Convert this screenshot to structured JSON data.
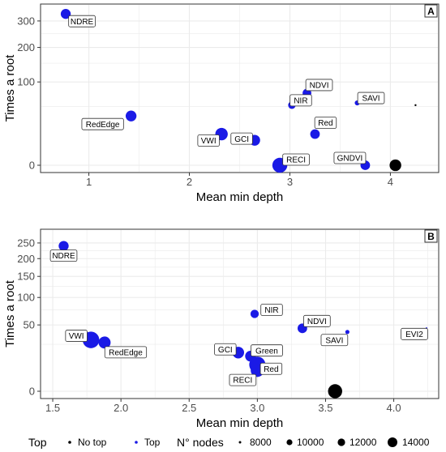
{
  "chart_data": [
    {
      "type": "scatter",
      "panel": "A",
      "xlabel": "Mean min depth",
      "ylabel": "Times a root",
      "xlim": [
        0.6,
        4.4
      ],
      "y_ticks": [
        0,
        100,
        200,
        300
      ],
      "x_ticks": [
        1,
        2,
        3,
        4
      ],
      "y_scale": "sqrt",
      "grid": true,
      "points": [
        {
          "label": "NDRE",
          "x": 0.77,
          "y": 330,
          "top": true,
          "nodes": 9000
        },
        {
          "label": "RedEdge",
          "x": 1.42,
          "y": 35,
          "top": true,
          "nodes": 9200
        },
        {
          "label": "VWI",
          "x": 2.32,
          "y": 14,
          "top": true,
          "nodes": 9600
        },
        {
          "label": "GCI",
          "x": 2.65,
          "y": 9,
          "top": true,
          "nodes": 9200
        },
        {
          "label": "RECI",
          "x": 2.9,
          "y": 0,
          "top": true,
          "nodes": 10200
        },
        {
          "label": "NIR",
          "x": 3.02,
          "y": 52,
          "top": true,
          "nodes": 8400
        },
        {
          "label": "NDVI",
          "x": 3.17,
          "y": 75,
          "top": true,
          "nodes": 8700
        },
        {
          "label": "Red",
          "x": 3.25,
          "y": 14,
          "top": true,
          "nodes": 8900
        },
        {
          "label": "SAVI",
          "x": 3.67,
          "y": 56,
          "top": true,
          "nodes": 7800
        },
        {
          "label": "GNDVI",
          "x": 3.75,
          "y": 0,
          "top": true,
          "nodes": 8900
        },
        {
          "label": "",
          "x": 4.05,
          "y": 0,
          "top": false,
          "nodes": 9400
        },
        {
          "label": "",
          "x": 4.25,
          "y": 52,
          "top": false,
          "nodes": 7000
        }
      ]
    },
    {
      "type": "scatter",
      "panel": "B",
      "xlabel": "Mean min depth",
      "ylabel": "Times a root",
      "xlim": [
        1.47,
        4.27
      ],
      "y_ticks": [
        0,
        50,
        100,
        150,
        200,
        250
      ],
      "x_ticks": [
        1.5,
        2.0,
        2.5,
        3.0,
        3.5,
        4.0
      ],
      "y_scale": "sqrt",
      "grid": true,
      "points": [
        {
          "label": "NDRE",
          "x": 1.58,
          "y": 240,
          "top": true,
          "nodes": 9000
        },
        {
          "label": "VWI",
          "x": 1.78,
          "y": 30,
          "top": true,
          "nodes": 10600
        },
        {
          "label": "RedEdge",
          "x": 1.88,
          "y": 27,
          "top": true,
          "nodes": 9500
        },
        {
          "label": "GCI",
          "x": 2.86,
          "y": 17,
          "top": true,
          "nodes": 9400
        },
        {
          "label": "Green",
          "x": 2.95,
          "y": 14,
          "top": true,
          "nodes": 9200
        },
        {
          "label": "NIR",
          "x": 2.98,
          "y": 68,
          "top": true,
          "nodes": 8600
        },
        {
          "label": "Red",
          "x": 3.0,
          "y": 8,
          "top": true,
          "nodes": 10500
        },
        {
          "label": "RECI",
          "x": 3.0,
          "y": 5,
          "top": true,
          "nodes": 9800
        },
        {
          "label": "NDVI",
          "x": 3.33,
          "y": 45,
          "top": true,
          "nodes": 8900
        },
        {
          "label": "SAVI",
          "x": 3.66,
          "y": 40,
          "top": true,
          "nodes": 7600
        },
        {
          "label": "EVI2",
          "x": 4.24,
          "y": 45,
          "top": true,
          "nodes": 6800
        },
        {
          "label": "",
          "x": 3.57,
          "y": 0,
          "top": false,
          "nodes": 10000
        }
      ]
    }
  ],
  "legend": {
    "top_title": "Top",
    "top_items": [
      "No top",
      "Top"
    ],
    "nodes_title": "N° nodes",
    "nodes_items": [
      "8000",
      "10000",
      "12000",
      "14000"
    ]
  },
  "colors": {
    "top": "#1a1ae6",
    "no_top": "#000000",
    "grid": "#ebebeb",
    "label_bg": "#ffffff"
  }
}
